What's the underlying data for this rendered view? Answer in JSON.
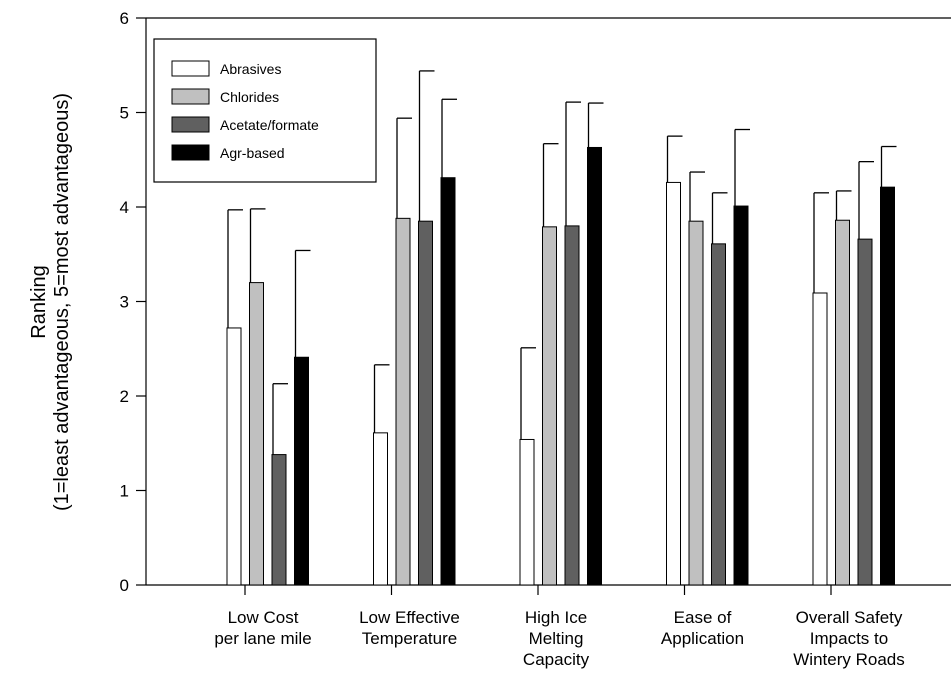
{
  "chart_data": {
    "type": "bar",
    "ylabel": [
      "Ranking",
      "(1=least advantageous, 5=most advantageous)"
    ],
    "xlabel": "",
    "ylim": [
      0,
      6
    ],
    "yticks": [
      0,
      1,
      2,
      3,
      4,
      5,
      6
    ],
    "categories": [
      [
        "Low Cost",
        "per lane mile"
      ],
      [
        "Low Effective",
        "Temperature"
      ],
      [
        "High Ice",
        "Melting",
        "Capacity"
      ],
      [
        "Ease of",
        "Application"
      ],
      [
        "Overall Safety",
        "Impacts to",
        "Wintery Roads"
      ]
    ],
    "series": [
      {
        "name": "Abrasives",
        "color": "#ffffff",
        "values": [
          2.72,
          1.61,
          1.54,
          4.26,
          3.09
        ],
        "errors": [
          1.25,
          0.72,
          0.97,
          0.49,
          1.06
        ]
      },
      {
        "name": "Chlorides",
        "color": "#c0c0c0",
        "values": [
          3.2,
          3.88,
          3.79,
          3.85,
          3.86
        ],
        "errors": [
          0.78,
          1.06,
          0.88,
          0.52,
          0.31
        ]
      },
      {
        "name": "Acetate/formate",
        "color": "#606060",
        "values": [
          1.38,
          3.85,
          3.8,
          3.61,
          3.66
        ],
        "errors": [
          0.75,
          1.59,
          1.31,
          0.54,
          0.82
        ]
      },
      {
        "name": "Agr-based",
        "color": "#000000",
        "values": [
          2.41,
          4.31,
          4.63,
          4.01,
          4.21
        ],
        "errors": [
          1.13,
          0.83,
          0.47,
          0.81,
          0.43
        ]
      }
    ],
    "grid": false,
    "legend_position": "top-left"
  }
}
